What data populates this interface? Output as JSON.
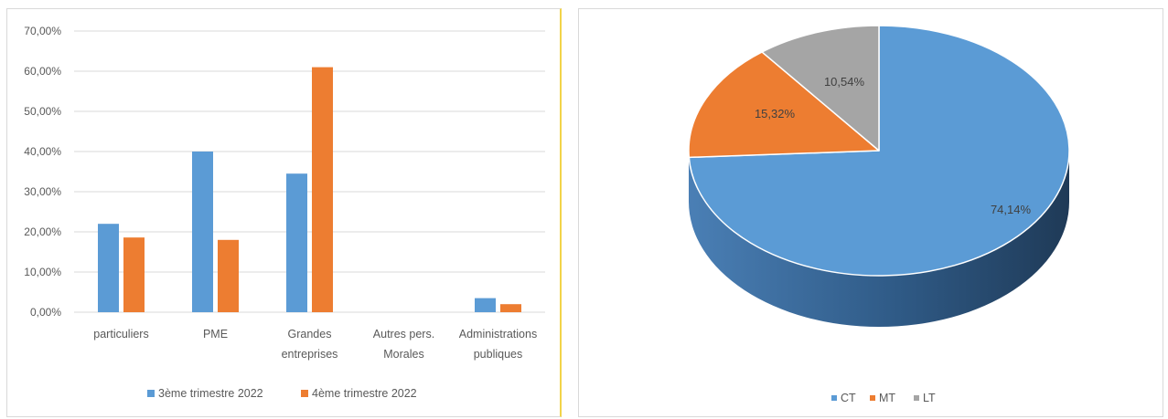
{
  "chart_data": [
    {
      "type": "bar",
      "categories": [
        "particuliers",
        "PME",
        "Grandes entreprises",
        "Autres pers. Morales",
        "Administrations publiques"
      ],
      "category_lines": [
        [
          "particuliers"
        ],
        [
          "PME"
        ],
        [
          "Grandes",
          "entreprises"
        ],
        [
          "Autres pers.",
          "Morales"
        ],
        [
          "Administrations",
          "publiques"
        ]
      ],
      "series": [
        {
          "name": "3ème trimestre 2022",
          "values": [
            22.0,
            40.0,
            34.5,
            0.0,
            3.5
          ],
          "color": "#5b9bd5"
        },
        {
          "name": "4ème trimestre 2022",
          "values": [
            18.6,
            18.0,
            61.0,
            0.0,
            2.0
          ],
          "color": "#ed7d31"
        }
      ],
      "ylim": [
        0,
        70
      ],
      "yticks": [
        "0,00%",
        "10,00%",
        "20,00%",
        "30,00%",
        "40,00%",
        "50,00%",
        "60,00%",
        "70,00%"
      ],
      "grid": true,
      "legend_position": "bottom"
    },
    {
      "type": "pie",
      "labels": [
        "CT",
        "MT",
        "LT"
      ],
      "values": [
        74.14,
        15.32,
        10.54
      ],
      "data_labels": [
        "74,14%",
        "15,32%",
        "10,54%"
      ],
      "colors": [
        "#5b9bd5",
        "#ed7d31",
        "#a5a5a5"
      ],
      "style": "3d",
      "legend_position": "bottom"
    }
  ]
}
